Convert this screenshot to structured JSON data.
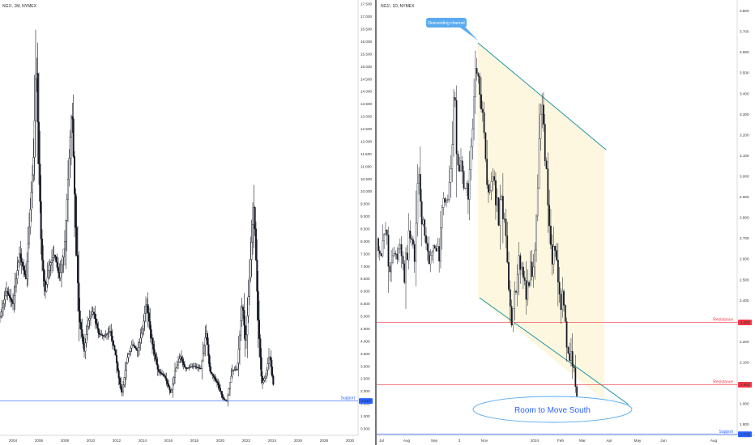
{
  "colors": {
    "candle": "#131722",
    "support": "#2962ff",
    "resistance": "#f23645",
    "channel": "#2196a6",
    "channel_fill": "#fdf7e0",
    "callout": "#5aaaf0",
    "south_text": "#2962ff"
  },
  "chart_data": [
    {
      "type": "candlestick",
      "title": "NG1!, 1M, NYMEX",
      "x_ticks": [
        "2004",
        "2006",
        "2008",
        "2010",
        "2012",
        "2014",
        "2016",
        "2018",
        "2020",
        "2022",
        "2024",
        "2026",
        "2028",
        "2030"
      ],
      "x_range": [
        2003.0,
        2030.5
      ],
      "y_ticks": [
        "0.500",
        "1.000",
        "1.500",
        "2.000",
        "2.500",
        "3.000",
        "3.500",
        "4.000",
        "4.500",
        "5.000",
        "5.500",
        "6.000",
        "6.500",
        "7.000",
        "7.500",
        "8.000",
        "8.500",
        "9.000",
        "9.500",
        "10.000",
        "10.500",
        "11.000",
        "11.500",
        "12.000",
        "12.500",
        "13.000",
        "13.500",
        "14.000",
        "14.500",
        "15.000",
        "15.500",
        "16.000",
        "16.500",
        "17.000",
        "17.500"
      ],
      "ylim": [
        0.3,
        17.6
      ],
      "close_path": [
        [
          2003.0,
          5.0
        ],
        [
          2003.5,
          6.0
        ],
        [
          2004.0,
          5.5
        ],
        [
          2004.5,
          7.5
        ],
        [
          2005.0,
          6.5
        ],
        [
          2005.3,
          9.0
        ],
        [
          2005.6,
          11.5
        ],
        [
          2005.8,
          15.5
        ],
        [
          2005.95,
          12.0
        ],
        [
          2006.2,
          7.5
        ],
        [
          2006.5,
          6.0
        ],
        [
          2006.8,
          7.0
        ],
        [
          2007.2,
          7.5
        ],
        [
          2007.6,
          6.5
        ],
        [
          2008.0,
          8.0
        ],
        [
          2008.3,
          11.0
        ],
        [
          2008.55,
          13.5
        ],
        [
          2008.8,
          9.0
        ],
        [
          2009.1,
          5.0
        ],
        [
          2009.5,
          3.6
        ],
        [
          2009.8,
          4.8
        ],
        [
          2010.2,
          5.2
        ],
        [
          2010.6,
          4.3
        ],
        [
          2011.0,
          4.2
        ],
        [
          2011.5,
          4.4
        ],
        [
          2011.9,
          3.5
        ],
        [
          2012.2,
          2.4
        ],
        [
          2012.4,
          1.9
        ],
        [
          2012.8,
          3.3
        ],
        [
          2013.2,
          3.9
        ],
        [
          2013.6,
          3.6
        ],
        [
          2014.0,
          4.5
        ],
        [
          2014.3,
          5.6
        ],
        [
          2014.7,
          4.0
        ],
        [
          2015.2,
          2.8
        ],
        [
          2015.7,
          2.6
        ],
        [
          2016.2,
          1.9
        ],
        [
          2016.5,
          2.8
        ],
        [
          2016.9,
          3.4
        ],
        [
          2017.3,
          2.9
        ],
        [
          2017.9,
          3.0
        ],
        [
          2018.5,
          2.9
        ],
        [
          2018.9,
          4.4
        ],
        [
          2019.2,
          2.8
        ],
        [
          2019.8,
          2.3
        ],
        [
          2020.2,
          1.7
        ],
        [
          2020.5,
          1.6
        ],
        [
          2020.9,
          2.8
        ],
        [
          2021.3,
          2.9
        ],
        [
          2021.7,
          5.6
        ],
        [
          2021.95,
          3.8
        ],
        [
          2022.3,
          7.0
        ],
        [
          2022.6,
          9.5
        ],
        [
          2022.9,
          5.0
        ],
        [
          2023.2,
          2.3
        ],
        [
          2023.5,
          2.6
        ],
        [
          2023.8,
          3.5
        ],
        [
          2024.0,
          2.6
        ],
        [
          2024.15,
          2.0
        ]
      ],
      "support": {
        "label": "Support",
        "value_label": "1.610",
        "value": 1.61
      }
    },
    {
      "type": "candlestick",
      "title": "NG1!, 1D, NYMEX",
      "x_ticks": [
        "Jul",
        "Aug",
        "Sep",
        "3",
        "Nov",
        "2024",
        "Feb",
        "Mar",
        "Apr",
        "May",
        "Jun",
        "Aug"
      ],
      "y_ticks": [
        "1.800",
        "1.900",
        "2.000",
        "2.100",
        "2.200",
        "2.300",
        "2.400",
        "2.500",
        "2.600",
        "2.700",
        "2.800",
        "2.900",
        "3.000",
        "3.100",
        "3.200",
        "3.300",
        "3.400",
        "3.500",
        "3.600",
        "3.700",
        "3.800"
      ],
      "ylim": [
        1.755,
        3.845
      ],
      "close_path": [
        [
          0,
          2.7
        ],
        [
          4,
          2.6
        ],
        [
          8,
          2.75
        ],
        [
          12,
          2.55
        ],
        [
          16,
          2.65
        ],
        [
          20,
          2.6
        ],
        [
          24,
          2.7
        ],
        [
          28,
          2.5
        ],
        [
          32,
          2.65
        ],
        [
          36,
          2.75
        ],
        [
          40,
          2.6
        ],
        [
          44,
          3.0
        ],
        [
          48,
          2.8
        ],
        [
          52,
          2.65
        ],
        [
          56,
          2.55
        ],
        [
          60,
          2.7
        ],
        [
          64,
          2.6
        ],
        [
          68,
          2.65
        ],
        [
          72,
          2.95
        ],
        [
          76,
          2.85
        ],
        [
          80,
          3.05
        ],
        [
          84,
          3.4
        ],
        [
          88,
          3.0
        ],
        [
          92,
          3.1
        ],
        [
          96,
          2.9
        ],
        [
          100,
          2.95
        ],
        [
          104,
          3.25
        ],
        [
          108,
          3.55
        ],
        [
          112,
          3.35
        ],
        [
          116,
          3.25
        ],
        [
          120,
          3.0
        ],
        [
          124,
          2.9
        ],
        [
          128,
          3.0
        ],
        [
          132,
          2.8
        ],
        [
          136,
          2.85
        ],
        [
          140,
          2.75
        ],
        [
          144,
          2.45
        ],
        [
          148,
          2.3
        ],
        [
          152,
          2.45
        ],
        [
          156,
          2.6
        ],
        [
          160,
          2.5
        ],
        [
          164,
          2.45
        ],
        [
          168,
          2.55
        ],
        [
          172,
          2.6
        ],
        [
          176,
          3.0
        ],
        [
          180,
          3.35
        ],
        [
          184,
          3.1
        ],
        [
          188,
          2.8
        ],
        [
          192,
          2.55
        ],
        [
          196,
          2.7
        ],
        [
          200,
          2.38
        ],
        [
          204,
          2.45
        ],
        [
          208,
          2.2
        ],
        [
          212,
          2.15
        ],
        [
          216,
          2.05
        ],
        [
          220,
          1.95
        ]
      ],
      "resistance": [
        {
          "label": "Resistance",
          "value_label": "2.293",
          "value": 2.293
        },
        {
          "label": "Resistance",
          "value_label": "1.992",
          "value": 1.992
        }
      ],
      "support": {
        "label": "Support",
        "value_label": "1.752",
        "value": 1.752
      },
      "annotations": {
        "channel_label": "Descending channel",
        "south_label": "Room to Move South"
      }
    }
  ]
}
